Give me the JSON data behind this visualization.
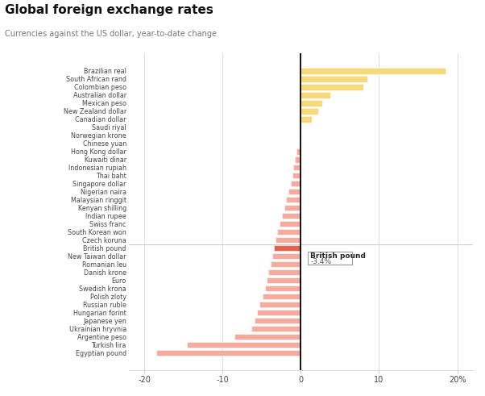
{
  "title": "Global foreign exchange rates",
  "subtitle": "Currencies against the US dollar, year-to-date change",
  "tooltip_label": "British pound",
  "tooltip_value": "-3.4%",
  "categories": [
    "Brazilian real",
    "South African rand",
    "Colombian peso",
    "Australian dollar",
    "Mexican peso",
    "New Zealand dollar",
    "Canadian dollar",
    "Saudi riyal",
    "Norwegian krone",
    "Chinese yuan",
    "Hong Kong dollar",
    "Kuwaiti dinar",
    "Indonesian rupiah",
    "Thai baht",
    "Singapore dollar",
    "Nigerian naira",
    "Malaysian ringgit",
    "Kenyan shilling",
    "Indian rupee",
    "Swiss franc",
    "South Korean won",
    "Czech koruna",
    "British pound",
    "New Taiwan dollar",
    "Romanian leu",
    "Danish krone",
    "Euro",
    "Swedish krona",
    "Polish zloty",
    "Russian ruble",
    "Hungarian forint",
    "Japanese yen",
    "Ukrainian hryvnia",
    "Argentine peso",
    "Turkish lira",
    "Egyptian pound"
  ],
  "values": [
    18.5,
    8.5,
    8.0,
    3.8,
    2.8,
    2.2,
    1.4,
    0.1,
    0.05,
    0.0,
    -0.5,
    -0.7,
    -0.9,
    -1.1,
    -1.3,
    -1.6,
    -1.9,
    -2.1,
    -2.4,
    -2.7,
    -3.0,
    -3.2,
    -3.4,
    -3.6,
    -3.8,
    -4.1,
    -4.3,
    -4.6,
    -4.9,
    -5.3,
    -5.6,
    -5.9,
    -6.3,
    -8.5,
    -14.5,
    -18.5
  ],
  "positive_color": "#f5d97a",
  "negative_color": "#f5ab9e",
  "highlight_color": "#e8604a",
  "highlight_index": 22,
  "bg_color": "#ffffff",
  "grid_color": "#cccccc",
  "text_color": "#444444",
  "title_color": "#111111",
  "xlim": [
    -22,
    22
  ],
  "xticks": [
    -20,
    -10,
    0,
    10,
    20
  ],
  "xtick_labels": [
    "-20",
    "-10",
    "0",
    "10",
    "20%"
  ]
}
